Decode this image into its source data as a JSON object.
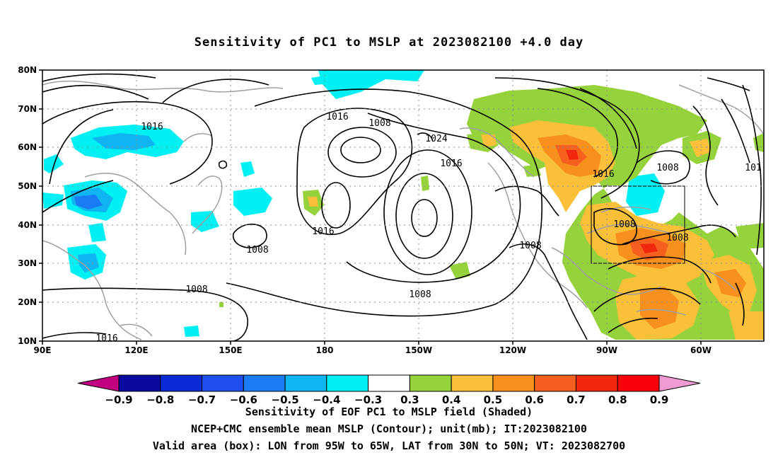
{
  "title": "Sensitivity of PC1 to MSLP at 2023082100 +4.0 day",
  "map": {
    "lat_ticks": [
      "80N",
      "70N",
      "60N",
      "50N",
      "40N",
      "30N",
      "20N",
      "10N"
    ],
    "lon_ticks": [
      "90E",
      "120E",
      "150E",
      "180",
      "150W",
      "120W",
      "90W",
      "60W"
    ],
    "lon_range": [
      "90E",
      "50W"
    ],
    "lat_range": [
      "10N",
      "80N"
    ],
    "grid": true,
    "contour_labels": [
      "1016",
      "1008",
      "1016",
      "1024",
      "1016",
      "1008",
      "1016",
      "1008",
      "1008",
      "1016",
      "1016",
      "1008",
      "1008",
      "1008",
      "101",
      "1008"
    ],
    "box": {
      "lon_from": "95W",
      "lon_to": "65W",
      "lat_from": "30N",
      "lat_to": "50N"
    }
  },
  "colorbar": {
    "labels": [
      "-0.9",
      "-0.8",
      "-0.7",
      "-0.6",
      "-0.5",
      "-0.4",
      "-0.3",
      "0.3",
      "0.4",
      "0.5",
      "0.6",
      "0.7",
      "0.8",
      "0.9"
    ],
    "colors": [
      "#c0007f",
      "#0a0a9f",
      "#0a2ad6",
      "#1e50f0",
      "#1a7cf2",
      "#10b4f0",
      "#00f0f4",
      "#ffffff",
      "#96d23c",
      "#fac03a",
      "#f8901e",
      "#f5601e",
      "#f0280e",
      "#f8000a",
      "#f09ad2"
    ]
  },
  "captions": {
    "line1": "Sensitivity of EOF PC1 to MSLP field (Shaded)",
    "line2": "NCEP+CMC ensemble mean MSLP (Contour); unit(mb); IT:2023082100",
    "line3": "Valid area (box): LON from 95W to 65W, LAT from 30N to 50N; VT: 2023082700"
  }
}
